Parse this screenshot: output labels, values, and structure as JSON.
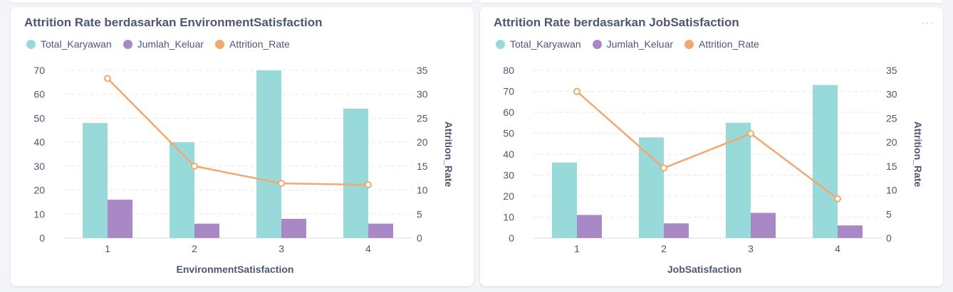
{
  "colors": {
    "total": "#98d9d9",
    "keluar": "#a989c5",
    "rate": "#f2a86f",
    "grid": "#e6e8ec",
    "text": "#4c5773"
  },
  "chart_data": [
    {
      "type": "bar",
      "title": "Attrition Rate berdasarkan EnvironmentSatisfaction",
      "xlabel": "EnvironmentSatisfaction",
      "ylabel_right": "Attrition_Rate",
      "categories": [
        "1",
        "2",
        "3",
        "4"
      ],
      "series": [
        {
          "name": "Total_Karyawan",
          "type": "bar",
          "axis": "left",
          "values": [
            48,
            40,
            70,
            54
          ]
        },
        {
          "name": "Jumlah_Keluar",
          "type": "bar",
          "axis": "left",
          "values": [
            16,
            6,
            8,
            6
          ]
        },
        {
          "name": "Attrition_Rate",
          "type": "line",
          "axis": "right",
          "values": [
            33.3,
            15,
            11.4,
            11.1
          ]
        }
      ],
      "left_axis": {
        "min": 0,
        "max": 70,
        "ticks": [
          "0",
          "10",
          "20",
          "30",
          "40",
          "50",
          "60",
          "70"
        ]
      },
      "right_axis": {
        "min": 0,
        "max": 35,
        "ticks": [
          "0",
          "5",
          "10",
          "15",
          "20",
          "25",
          "30",
          "35"
        ]
      },
      "legend": "top-left",
      "grid": true
    },
    {
      "type": "bar",
      "title": "Attrition Rate berdasarkan JobSatisfaction",
      "xlabel": "JobSatisfaction",
      "ylabel_right": "Attrition_Rate",
      "categories": [
        "1",
        "2",
        "3",
        "4"
      ],
      "series": [
        {
          "name": "Total_Karyawan",
          "type": "bar",
          "axis": "left",
          "values": [
            36,
            48,
            55,
            73
          ]
        },
        {
          "name": "Jumlah_Keluar",
          "type": "bar",
          "axis": "left",
          "values": [
            11,
            7,
            12,
            6
          ]
        },
        {
          "name": "Attrition_Rate",
          "type": "line",
          "axis": "right",
          "values": [
            30.6,
            14.6,
            21.8,
            8.2
          ]
        }
      ],
      "left_axis": {
        "min": 0,
        "max": 80,
        "ticks": [
          "0",
          "10",
          "20",
          "30",
          "40",
          "50",
          "60",
          "70",
          "80"
        ]
      },
      "right_axis": {
        "min": 0,
        "max": 35,
        "ticks": [
          "0",
          "5",
          "10",
          "15",
          "20",
          "25",
          "30",
          "35"
        ]
      },
      "legend": "top-left",
      "grid": true
    }
  ]
}
